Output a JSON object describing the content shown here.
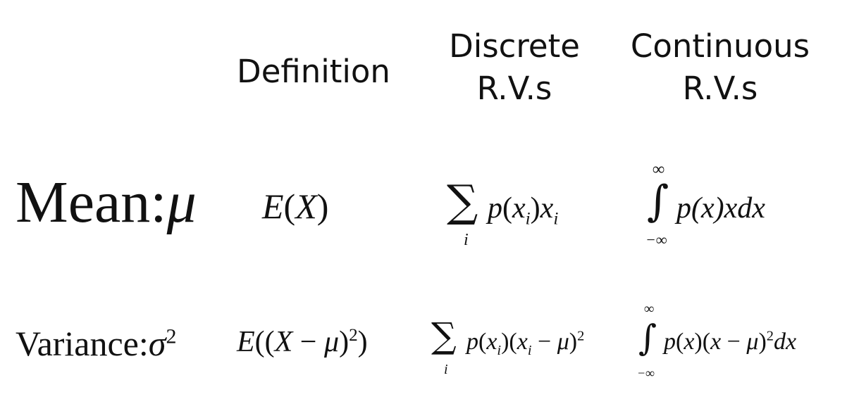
{
  "headers": {
    "definition": "Definition",
    "discrete": [
      "Discrete",
      "R.V.s"
    ],
    "continuous": [
      "Continuous",
      "R.V.s"
    ]
  },
  "mean": {
    "label": "Mean:",
    "symbol": "μ",
    "definition": {
      "fn": "E",
      "arg": "(X)"
    },
    "discrete": {
      "sum_index": "i",
      "p": "p",
      "x": "x",
      "i": "i"
    },
    "continuous": {
      "upper": "∞",
      "lower": "−∞",
      "body": "p(x)xdx"
    }
  },
  "variance": {
    "label": "Variance:",
    "symbol": "σ",
    "exponent": "2",
    "definition": {
      "fn": "E",
      "inner": "((X − μ)",
      "exp": "2",
      "close": ")"
    },
    "discrete": {
      "sum_index": "i",
      "p": "p",
      "x": "x",
      "i": "i",
      "mu": "μ",
      "exp": "2"
    },
    "continuous": {
      "upper": "∞",
      "lower": "−∞",
      "exp": "2"
    }
  }
}
